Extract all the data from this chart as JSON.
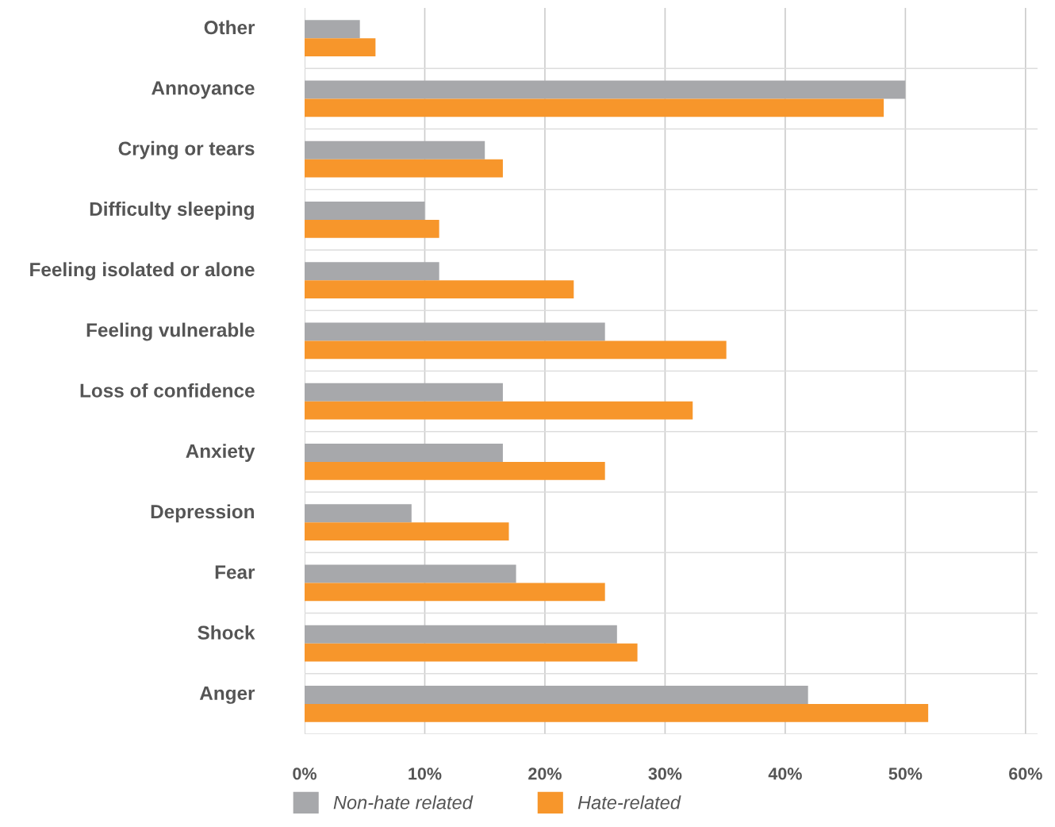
{
  "chart_data": {
    "type": "bar",
    "orientation": "horizontal",
    "categories": [
      "Other",
      "Annoyance",
      "Crying or tears",
      "Difficulty sleeping",
      "Feeling isolated or alone",
      "Feeling vulnerable",
      "Loss of confidence",
      "Anxiety",
      "Depression",
      "Fear",
      "Shock",
      "Anger"
    ],
    "series": [
      {
        "name": "Non-hate related",
        "color": "#a7a8ab",
        "values": [
          4.6,
          50.0,
          15.0,
          10.0,
          11.2,
          25.0,
          16.5,
          16.5,
          8.9,
          17.6,
          26.0,
          41.9
        ]
      },
      {
        "name": "Hate-related",
        "color": "#f7962b",
        "values": [
          5.9,
          48.2,
          16.5,
          11.2,
          22.4,
          35.1,
          32.3,
          25.0,
          17.0,
          25.0,
          27.7,
          51.9
        ]
      }
    ],
    "xlim": [
      0,
      61
    ],
    "xticks": [
      {
        "value": 0,
        "label": "0%"
      },
      {
        "value": 10,
        "label": "10%"
      },
      {
        "value": 20,
        "label": "20%"
      },
      {
        "value": 30,
        "label": "30%"
      },
      {
        "value": 40,
        "label": "40%"
      },
      {
        "value": 50,
        "label": "50%"
      },
      {
        "value": 60,
        "label": "60%"
      }
    ],
    "grid": "x",
    "legend": "bottom left"
  }
}
